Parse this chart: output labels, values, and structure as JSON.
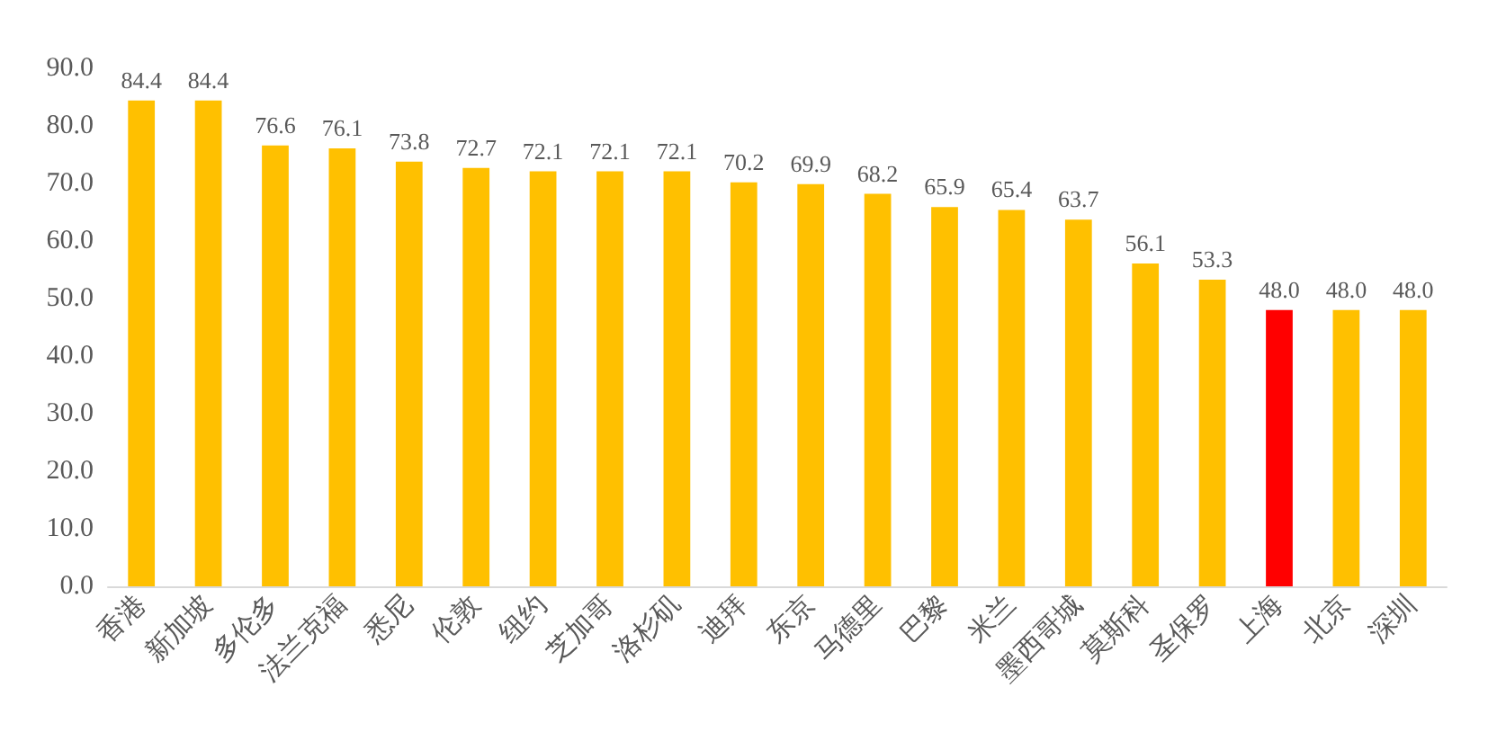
{
  "chart_data": {
    "type": "bar",
    "categories": [
      "香港",
      "新加坡",
      "多伦多",
      "法兰克福",
      "悉尼",
      "伦敦",
      "纽约",
      "芝加哥",
      "洛杉矶",
      "迪拜",
      "东京",
      "马德里",
      "巴黎",
      "米兰",
      "墨西哥城",
      "莫斯科",
      "圣保罗",
      "上海",
      "北京",
      "深圳"
    ],
    "values": [
      84.4,
      84.4,
      76.6,
      76.1,
      73.8,
      72.7,
      72.1,
      72.1,
      72.1,
      70.2,
      69.9,
      68.2,
      65.9,
      65.4,
      63.7,
      56.1,
      53.3,
      48.0,
      48.0,
      48.0
    ],
    "colors": [
      "#ffc000",
      "#ffc000",
      "#ffc000",
      "#ffc000",
      "#ffc000",
      "#ffc000",
      "#ffc000",
      "#ffc000",
      "#ffc000",
      "#ffc000",
      "#ffc000",
      "#ffc000",
      "#ffc000",
      "#ffc000",
      "#ffc000",
      "#ffc000",
      "#ffc000",
      "#ff0000",
      "#ffc000",
      "#ffc000"
    ],
    "value_labels": [
      "84.4",
      "84.4",
      "76.6",
      "76.1",
      "73.8",
      "72.7",
      "72.1",
      "72.1",
      "72.1",
      "70.2",
      "69.9",
      "68.2",
      "65.9",
      "65.4",
      "63.7",
      "56.1",
      "53.3",
      "48.0",
      "48.0",
      "48.0"
    ],
    "ylim": [
      0,
      90
    ],
    "yticks": [
      {
        "value": 0,
        "label": "0.0"
      },
      {
        "value": 10,
        "label": "10.0"
      },
      {
        "value": 20,
        "label": "20.0"
      },
      {
        "value": 30,
        "label": "30.0"
      },
      {
        "value": 40,
        "label": "40.0"
      },
      {
        "value": 50,
        "label": "50.0"
      },
      {
        "value": 60,
        "label": "60.0"
      },
      {
        "value": 70,
        "label": "70.0"
      },
      {
        "value": 80,
        "label": "80.0"
      },
      {
        "value": 90,
        "label": "90.0"
      }
    ],
    "grid": false
  }
}
